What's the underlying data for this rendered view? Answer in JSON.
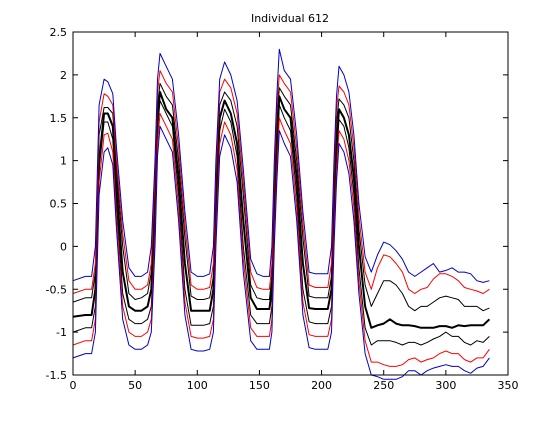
{
  "chart_data": {
    "type": "line",
    "title": "Individual 612",
    "xlabel": "",
    "ylabel": "",
    "xlim": [
      0,
      350
    ],
    "ylim": [
      -1.5,
      2.5
    ],
    "xticks": [
      0,
      50,
      100,
      150,
      200,
      250,
      300,
      350
    ],
    "yticks": [
      -1.5,
      -1,
      -0.5,
      0,
      0.5,
      1,
      1.5,
      2,
      2.5
    ],
    "grid": false,
    "legend": "none",
    "series": [
      {
        "color": "#000000",
        "style": "thick",
        "x": [
          0,
          10,
          15,
          18,
          21,
          25,
          28,
          32,
          35,
          40,
          45,
          50,
          55,
          60,
          63,
          66,
          68,
          70,
          75,
          80,
          85,
          90,
          95,
          100,
          105,
          110,
          113,
          115,
          118,
          122,
          127,
          132,
          137,
          143,
          148,
          153,
          158,
          160,
          162,
          164,
          166,
          170,
          175,
          180,
          185,
          190,
          195,
          200,
          205,
          208,
          210,
          212,
          214,
          218,
          222,
          226,
          230,
          235,
          240,
          245,
          250,
          255,
          260,
          265,
          270,
          275,
          280,
          285,
          290,
          295,
          300,
          305,
          310,
          315,
          320,
          325,
          330,
          335
        ],
        "y": [
          -0.82,
          -0.8,
          -0.8,
          -0.5,
          1.0,
          1.55,
          1.55,
          1.4,
          0.7,
          -0.3,
          -0.7,
          -0.75,
          -0.75,
          -0.7,
          -0.5,
          0.5,
          1.5,
          1.8,
          1.6,
          1.5,
          0.8,
          -0.2,
          -0.75,
          -0.75,
          -0.75,
          -0.75,
          -0.5,
          0.5,
          1.5,
          1.7,
          1.55,
          1.2,
          0.3,
          -0.6,
          -0.73,
          -0.73,
          -0.73,
          -0.5,
          0.5,
          1.2,
          1.75,
          1.6,
          1.5,
          0.8,
          -0.2,
          -0.72,
          -0.73,
          -0.73,
          -0.73,
          -0.5,
          0.5,
          1.2,
          1.6,
          1.5,
          1.3,
          0.8,
          0.0,
          -0.7,
          -0.95,
          -0.92,
          -0.9,
          -0.85,
          -0.9,
          -0.92,
          -0.92,
          -0.93,
          -0.95,
          -0.95,
          -0.95,
          -0.93,
          -0.93,
          -0.95,
          -0.92,
          -0.93,
          -0.92,
          -0.92,
          -0.92,
          -0.85
        ]
      },
      {
        "color": "#000000",
        "style": "thin",
        "x": [
          0,
          10,
          15,
          18,
          21,
          25,
          28,
          32,
          35,
          40,
          45,
          50,
          55,
          60,
          63,
          66,
          68,
          70,
          75,
          80,
          85,
          90,
          95,
          100,
          105,
          110,
          113,
          115,
          118,
          122,
          127,
          132,
          137,
          143,
          148,
          153,
          158,
          160,
          162,
          164,
          166,
          170,
          175,
          180,
          185,
          190,
          195,
          200,
          205,
          208,
          210,
          212,
          214,
          218,
          222,
          226,
          230,
          235,
          240,
          245,
          250,
          255,
          260,
          265,
          270,
          275,
          280,
          285,
          290,
          295,
          300,
          305,
          310,
          315,
          320,
          325,
          330,
          335
        ],
        "y": [
          -0.65,
          -0.6,
          -0.6,
          -0.3,
          1.3,
          1.62,
          1.62,
          1.55,
          0.9,
          0.0,
          -0.55,
          -0.62,
          -0.6,
          -0.55,
          -0.3,
          0.7,
          1.65,
          1.9,
          1.75,
          1.65,
          1.0,
          0.1,
          -0.58,
          -0.62,
          -0.62,
          -0.6,
          -0.35,
          0.7,
          1.65,
          1.8,
          1.7,
          1.4,
          0.6,
          -0.45,
          -0.6,
          -0.62,
          -0.62,
          -0.35,
          0.7,
          1.45,
          1.85,
          1.75,
          1.65,
          1.0,
          0.1,
          -0.58,
          -0.6,
          -0.6,
          -0.6,
          -0.35,
          0.7,
          1.45,
          1.72,
          1.65,
          1.5,
          1.0,
          0.2,
          -0.45,
          -0.7,
          -0.55,
          -0.4,
          -0.4,
          -0.45,
          -0.55,
          -0.7,
          -0.75,
          -0.7,
          -0.7,
          -0.65,
          -0.6,
          -0.58,
          -0.6,
          -0.62,
          -0.7,
          -0.7,
          -0.7,
          -0.75,
          -0.72
        ]
      },
      {
        "color": "#000000",
        "style": "thin",
        "x": [
          0,
          10,
          15,
          18,
          21,
          25,
          28,
          32,
          35,
          40,
          45,
          50,
          55,
          60,
          63,
          66,
          68,
          70,
          75,
          80,
          85,
          90,
          95,
          100,
          105,
          110,
          113,
          115,
          118,
          122,
          127,
          132,
          137,
          143,
          148,
          153,
          158,
          160,
          162,
          164,
          166,
          170,
          175,
          180,
          185,
          190,
          195,
          200,
          205,
          208,
          210,
          212,
          214,
          218,
          222,
          226,
          230,
          235,
          240,
          245,
          250,
          255,
          260,
          265,
          270,
          275,
          280,
          285,
          290,
          295,
          300,
          305,
          310,
          315,
          320,
          325,
          330,
          335
        ],
        "y": [
          -1.0,
          -0.95,
          -0.95,
          -0.7,
          0.9,
          1.45,
          1.45,
          1.25,
          0.5,
          -0.55,
          -0.85,
          -0.9,
          -0.9,
          -0.85,
          -0.7,
          0.3,
          1.35,
          1.7,
          1.55,
          1.4,
          0.6,
          -0.5,
          -0.92,
          -0.92,
          -0.92,
          -0.9,
          -0.7,
          0.3,
          1.35,
          1.6,
          1.45,
          1.05,
          0.0,
          -0.8,
          -0.9,
          -0.9,
          -0.9,
          -0.7,
          0.3,
          1.05,
          1.65,
          1.5,
          1.35,
          0.6,
          -0.5,
          -0.88,
          -0.9,
          -0.9,
          -0.9,
          -0.7,
          0.3,
          1.05,
          1.48,
          1.4,
          1.15,
          0.6,
          -0.25,
          -0.95,
          -1.15,
          -1.1,
          -1.1,
          -1.1,
          -1.12,
          -1.15,
          -1.12,
          -1.12,
          -1.15,
          -1.12,
          -1.08,
          -1.05,
          -1.0,
          -1.05,
          -1.05,
          -1.12,
          -1.15,
          -1.1,
          -1.12,
          -1.05
        ]
      },
      {
        "color": "#ff0000",
        "style": "thin",
        "x": [
          0,
          10,
          15,
          18,
          21,
          25,
          28,
          32,
          35,
          40,
          45,
          50,
          55,
          60,
          63,
          66,
          68,
          70,
          75,
          80,
          85,
          90,
          95,
          100,
          105,
          110,
          113,
          115,
          118,
          122,
          127,
          132,
          137,
          143,
          148,
          153,
          158,
          160,
          162,
          164,
          166,
          170,
          175,
          180,
          185,
          190,
          195,
          200,
          205,
          208,
          210,
          212,
          214,
          218,
          222,
          226,
          230,
          235,
          240,
          245,
          250,
          255,
          260,
          265,
          270,
          275,
          280,
          285,
          290,
          295,
          300,
          305,
          310,
          315,
          320,
          325,
          330,
          335
        ],
        "y": [
          -0.55,
          -0.5,
          -0.5,
          -0.2,
          1.45,
          1.78,
          1.75,
          1.65,
          1.0,
          0.15,
          -0.4,
          -0.5,
          -0.5,
          -0.45,
          -0.2,
          0.85,
          1.8,
          2.05,
          1.9,
          1.8,
          1.15,
          0.25,
          -0.45,
          -0.5,
          -0.5,
          -0.48,
          -0.2,
          0.85,
          1.8,
          1.95,
          1.85,
          1.55,
          0.75,
          -0.3,
          -0.48,
          -0.5,
          -0.5,
          -0.2,
          0.85,
          1.6,
          2.0,
          1.9,
          1.8,
          1.15,
          0.25,
          -0.45,
          -0.48,
          -0.48,
          -0.48,
          -0.2,
          0.85,
          1.6,
          1.87,
          1.8,
          1.65,
          1.15,
          0.35,
          -0.3,
          -0.5,
          -0.25,
          -0.1,
          -0.12,
          -0.2,
          -0.3,
          -0.5,
          -0.55,
          -0.5,
          -0.48,
          -0.38,
          -0.32,
          -0.32,
          -0.35,
          -0.4,
          -0.48,
          -0.5,
          -0.52,
          -0.55,
          -0.5
        ]
      },
      {
        "color": "#ff0000",
        "style": "thin",
        "x": [
          0,
          10,
          15,
          18,
          21,
          25,
          28,
          32,
          35,
          40,
          45,
          50,
          55,
          60,
          63,
          66,
          68,
          70,
          75,
          80,
          85,
          90,
          95,
          100,
          105,
          110,
          113,
          115,
          118,
          122,
          127,
          132,
          137,
          143,
          148,
          153,
          158,
          160,
          162,
          164,
          166,
          170,
          175,
          180,
          185,
          190,
          195,
          200,
          205,
          208,
          210,
          212,
          214,
          218,
          222,
          226,
          230,
          235,
          240,
          245,
          250,
          255,
          260,
          265,
          270,
          275,
          280,
          285,
          290,
          295,
          300,
          305,
          310,
          315,
          320,
          325,
          330,
          335
        ],
        "y": [
          -1.15,
          -1.1,
          -1.1,
          -0.85,
          0.75,
          1.3,
          1.32,
          1.1,
          0.35,
          -0.7,
          -1.0,
          -1.05,
          -1.05,
          -1.0,
          -0.85,
          0.15,
          1.2,
          1.55,
          1.4,
          1.25,
          0.45,
          -0.65,
          -1.05,
          -1.07,
          -1.07,
          -1.05,
          -0.85,
          0.15,
          1.2,
          1.45,
          1.3,
          0.9,
          -0.15,
          -0.95,
          -1.05,
          -1.05,
          -1.05,
          -0.85,
          0.15,
          0.9,
          1.5,
          1.35,
          1.2,
          0.45,
          -0.65,
          -1.03,
          -1.05,
          -1.05,
          -1.05,
          -0.85,
          0.15,
          0.9,
          1.35,
          1.25,
          1.0,
          0.45,
          -0.4,
          -1.1,
          -1.35,
          -1.35,
          -1.38,
          -1.4,
          -1.4,
          -1.38,
          -1.32,
          -1.3,
          -1.35,
          -1.32,
          -1.3,
          -1.25,
          -1.22,
          -1.25,
          -1.25,
          -1.32,
          -1.35,
          -1.3,
          -1.3,
          -1.2
        ]
      },
      {
        "color": "#0000cc",
        "style": "thin",
        "x": [
          0,
          10,
          15,
          18,
          21,
          25,
          28,
          32,
          35,
          40,
          45,
          50,
          55,
          60,
          63,
          66,
          68,
          70,
          75,
          80,
          85,
          90,
          95,
          100,
          105,
          110,
          113,
          115,
          118,
          122,
          127,
          132,
          137,
          143,
          148,
          153,
          158,
          160,
          162,
          164,
          166,
          170,
          175,
          180,
          185,
          190,
          195,
          200,
          205,
          208,
          210,
          212,
          214,
          218,
          222,
          226,
          230,
          235,
          240,
          245,
          250,
          255,
          260,
          265,
          270,
          275,
          280,
          285,
          290,
          295,
          300,
          305,
          310,
          315,
          320,
          325,
          330,
          335
        ],
        "y": [
          -0.4,
          -0.35,
          -0.35,
          0.0,
          1.65,
          1.95,
          1.92,
          1.78,
          1.15,
          0.3,
          -0.25,
          -0.35,
          -0.35,
          -0.3,
          0.0,
          1.0,
          1.95,
          2.25,
          2.1,
          1.95,
          1.3,
          0.4,
          -0.3,
          -0.35,
          -0.35,
          -0.32,
          0.0,
          1.0,
          1.95,
          2.15,
          2.0,
          1.7,
          0.9,
          -0.15,
          -0.32,
          -0.35,
          -0.35,
          0.0,
          1.0,
          1.75,
          2.3,
          2.05,
          1.95,
          1.3,
          0.4,
          -0.3,
          -0.32,
          -0.32,
          -0.32,
          0.0,
          1.0,
          1.75,
          2.1,
          2.0,
          1.8,
          1.3,
          0.5,
          -0.12,
          -0.3,
          -0.1,
          0.05,
          0.02,
          -0.05,
          -0.15,
          -0.3,
          -0.35,
          -0.3,
          -0.25,
          -0.2,
          -0.3,
          -0.28,
          -0.25,
          -0.3,
          -0.3,
          -0.32,
          -0.4,
          -0.42,
          -0.4
        ]
      },
      {
        "color": "#0000cc",
        "style": "thin",
        "x": [
          0,
          10,
          15,
          18,
          21,
          25,
          28,
          32,
          35,
          40,
          45,
          50,
          55,
          60,
          63,
          66,
          68,
          70,
          75,
          80,
          85,
          90,
          95,
          100,
          105,
          110,
          113,
          115,
          118,
          122,
          127,
          132,
          137,
          143,
          148,
          153,
          158,
          160,
          162,
          164,
          166,
          170,
          175,
          180,
          185,
          190,
          195,
          200,
          205,
          208,
          210,
          212,
          214,
          218,
          222,
          226,
          230,
          235,
          240,
          245,
          250,
          255,
          260,
          265,
          270,
          275,
          280,
          285,
          290,
          295,
          300,
          305,
          310,
          315,
          320,
          325,
          330,
          335
        ],
        "y": [
          -1.3,
          -1.25,
          -1.25,
          -1.0,
          0.6,
          1.1,
          1.15,
          0.95,
          0.2,
          -0.85,
          -1.15,
          -1.2,
          -1.2,
          -1.15,
          -1.0,
          0.0,
          1.05,
          1.4,
          1.25,
          1.1,
          0.3,
          -0.8,
          -1.2,
          -1.22,
          -1.22,
          -1.2,
          -1.0,
          0.0,
          1.05,
          1.3,
          1.15,
          0.75,
          -0.3,
          -1.1,
          -1.2,
          -1.2,
          -1.2,
          -1.0,
          0.0,
          0.75,
          1.35,
          1.2,
          1.05,
          0.3,
          -0.8,
          -1.18,
          -1.2,
          -1.2,
          -1.2,
          -1.0,
          0.0,
          0.75,
          1.2,
          1.1,
          0.85,
          0.3,
          -0.55,
          -1.25,
          -1.5,
          -1.52,
          -1.55,
          -1.55,
          -1.55,
          -1.52,
          -1.45,
          -1.45,
          -1.5,
          -1.45,
          -1.42,
          -1.4,
          -1.38,
          -1.4,
          -1.4,
          -1.45,
          -1.48,
          -1.42,
          -1.4,
          -1.3
        ]
      }
    ]
  }
}
